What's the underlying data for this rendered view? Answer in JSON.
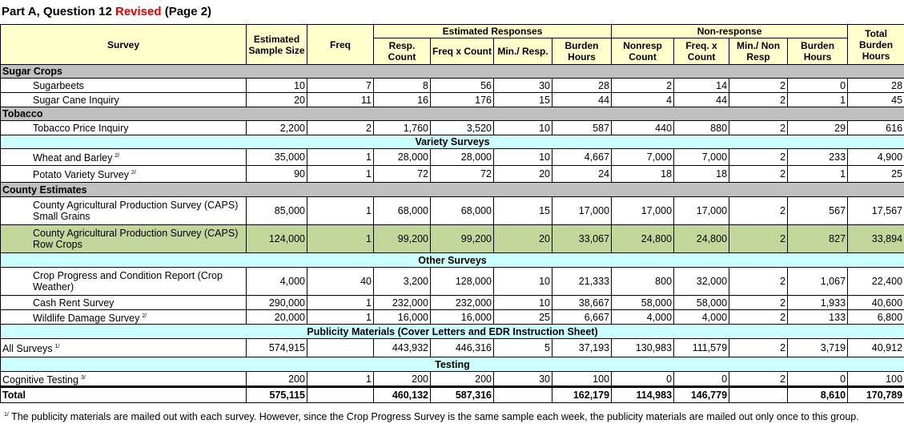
{
  "title": {
    "text": "Part A, Question 12",
    "revised": "Revised",
    "page": "(Page 2)"
  },
  "header": {
    "survey": "Survey",
    "sample": "Estimated Sample Size",
    "freq": "Freq",
    "est_group": "Estimated Responses",
    "resp_count": "Resp. Count",
    "freq_x_count": "Freq x Count",
    "min_resp": "Min./ Resp.",
    "burden": "Burden Hours",
    "non_group": "Non-response",
    "nonresp_count": "Nonresp Count",
    "non_freq_x_count": "Freq. x Count",
    "min_non": "Min./ Non Resp",
    "non_burden": "Burden Hours",
    "total": "Total Burden Hours"
  },
  "rows": [
    {
      "label": "Sugar Crops"
    },
    {
      "label": "Sugarbeets",
      "cells": [
        "10",
        "7",
        "8",
        "56",
        "30",
        "28",
        "2",
        "14",
        "2",
        "0",
        "28"
      ]
    },
    {
      "label": "Sugar Cane Inquiry",
      "cells": [
        "20",
        "11",
        "16",
        "176",
        "15",
        "44",
        "4",
        "44",
        "2",
        "1",
        "45"
      ]
    },
    {
      "label": "Tobacco"
    },
    {
      "label": "Tobacco Price Inquiry",
      "cells": [
        "2,200",
        "2",
        "1,760",
        "3,520",
        "10",
        "587",
        "440",
        "880",
        "2",
        "29",
        "616"
      ]
    },
    {
      "label": "Variety Surveys"
    },
    {
      "label": "Wheat and Barley",
      "note": "2/",
      "cells": [
        "35,000",
        "1",
        "28,000",
        "28,000",
        "10",
        "4,667",
        "7,000",
        "7,000",
        "2",
        "233",
        "4,900"
      ]
    },
    {
      "label": "Potato Variety Survey",
      "note": "2/",
      "cells": [
        "90",
        "1",
        "72",
        "72",
        "20",
        "24",
        "18",
        "18",
        "2",
        "1",
        "25"
      ]
    },
    {
      "label": "County Estimates"
    },
    {
      "label": "County Agricultural Production Survey (CAPS) Small Grains",
      "cells": [
        "85,000",
        "1",
        "68,000",
        "68,000",
        "15",
        "17,000",
        "17,000",
        "17,000",
        "2",
        "567",
        "17,567"
      ]
    },
    {
      "label": "County Agricultural Production Survey (CAPS) Row Crops",
      "cells": [
        "124,000",
        "1",
        "99,200",
        "99,200",
        "20",
        "33,067",
        "24,800",
        "24,800",
        "2",
        "827",
        "33,894"
      ]
    },
    {
      "label": "Other Surveys"
    },
    {
      "label": "Crop Progress and Condition Report (Crop Weather)",
      "cells": [
        "4,000",
        "40",
        "3,200",
        "128,000",
        "10",
        "21,333",
        "800",
        "32,000",
        "2",
        "1,067",
        "22,400"
      ]
    },
    {
      "label": "Cash Rent Survey",
      "cells": [
        "290,000",
        "1",
        "232,000",
        "232,000",
        "10",
        "38,667",
        "58,000",
        "58,000",
        "2",
        "1,933",
        "40,600"
      ]
    },
    {
      "label": "Wildlife Damage Survey",
      "note": "2/",
      "cells": [
        "20,000",
        "1",
        "16,000",
        "16,000",
        "25",
        "6,667",
        "4,000",
        "4,000",
        "2",
        "133",
        "6,800"
      ]
    },
    {
      "label": "Publicity Materials (Cover Letters and EDR Instruction Sheet)"
    },
    {
      "label": "All Surveys",
      "note": "1/",
      "cells": [
        "574,915",
        null,
        "443,932",
        "446,316",
        "5",
        "37,193",
        "130,983",
        "111,579",
        "2",
        "3,719",
        "40,912"
      ]
    },
    {
      "label": "Testing"
    },
    {
      "label": "Cognitive Testing",
      "note": "3/",
      "cells": [
        "200",
        "1",
        "200",
        "200",
        "30",
        "100",
        "0",
        "0",
        "2",
        "0",
        "100"
      ]
    },
    {
      "label": "Total",
      "cells": [
        "575,115",
        null,
        "460,132",
        "587,316",
        null,
        "162,179",
        "114,983",
        "146,779",
        null,
        "8,610",
        "170,789"
      ]
    }
  ],
  "footnote": {
    "note": "1/",
    "text": "The publicity materials are mailed out with each survey.  However, since the Crop Progress Survey is the same sample each week, the publicity materials are mailed out only once to this group."
  }
}
